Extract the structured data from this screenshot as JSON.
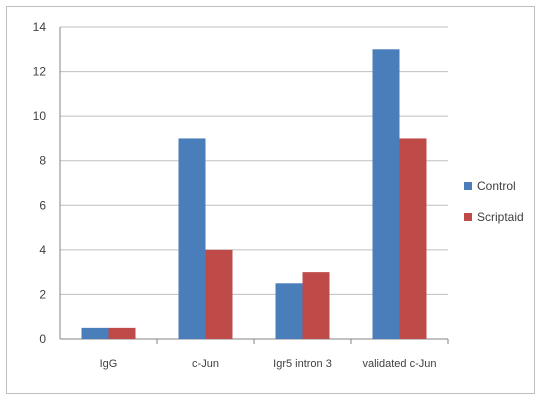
{
  "chart_data": {
    "type": "bar",
    "categories": [
      "IgG",
      "c-Jun",
      "Igr5 intron 3",
      "validated c-Jun"
    ],
    "series": [
      {
        "name": "Control",
        "values": [
          0.5,
          9,
          2.5,
          13
        ],
        "color": "#4a7ebb"
      },
      {
        "name": "Scriptaid",
        "values": [
          0.5,
          4,
          3,
          9
        ],
        "color": "#be4b48"
      }
    ],
    "ylim": [
      0,
      14
    ],
    "yticks": [
      0,
      2,
      4,
      6,
      8,
      10,
      12,
      14
    ],
    "grid": true,
    "legend": "right",
    "title": "",
    "xlabel": "",
    "ylabel": ""
  }
}
